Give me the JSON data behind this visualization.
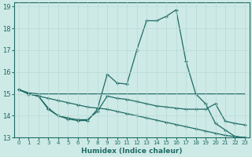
{
  "xlabel": "Humidex (Indice chaleur)",
  "bg_color": "#ceeae6",
  "line_color": "#1e6b65",
  "grid_color": "#b8d8d4",
  "xlim": [
    -0.5,
    23.5
  ],
  "ylim": [
    13,
    19.2
  ],
  "yticks": [
    13,
    14,
    15,
    16,
    17,
    18,
    19
  ],
  "xticks": [
    0,
    1,
    2,
    3,
    4,
    5,
    6,
    7,
    8,
    9,
    10,
    11,
    12,
    13,
    14,
    15,
    16,
    17,
    18,
    19,
    20,
    21,
    22,
    23
  ],
  "line1_x": [
    0,
    1,
    2,
    3,
    4,
    5,
    6,
    7,
    8,
    9,
    10,
    11,
    12,
    13,
    14,
    15,
    16,
    17,
    18,
    19,
    20,
    21,
    22,
    23
  ],
  "line1_y": [
    15.2,
    15.0,
    14.9,
    14.3,
    14.0,
    13.85,
    13.78,
    13.78,
    14.3,
    15.9,
    15.5,
    15.45,
    17.0,
    18.35,
    18.35,
    18.55,
    18.85,
    16.5,
    15.0,
    14.55,
    13.65,
    13.35,
    13.05,
    13.0
  ],
  "line2_x": [
    0,
    1,
    2,
    3,
    4,
    5,
    6,
    7,
    8,
    9,
    10,
    11,
    12,
    13,
    14,
    15,
    16,
    17,
    18,
    19,
    20,
    21,
    22,
    23
  ],
  "line2_y": [
    15.2,
    15.05,
    15.0,
    15.0,
    15.0,
    15.0,
    15.0,
    15.0,
    15.0,
    15.0,
    15.0,
    15.0,
    15.0,
    15.0,
    15.0,
    15.0,
    15.0,
    15.0,
    15.0,
    15.0,
    15.0,
    15.0,
    15.0,
    15.0
  ],
  "line3_x": [
    0,
    1,
    2,
    3,
    4,
    5,
    6,
    7,
    8,
    9,
    10,
    11,
    12,
    13,
    14,
    15,
    16,
    17,
    18,
    19,
    20,
    21,
    22,
    23
  ],
  "line3_y": [
    15.2,
    15.0,
    14.9,
    14.35,
    14.0,
    13.9,
    13.82,
    13.82,
    14.2,
    14.9,
    14.8,
    14.75,
    14.65,
    14.55,
    14.45,
    14.4,
    14.35,
    14.3,
    14.3,
    14.3,
    14.55,
    13.75,
    13.65,
    13.58
  ],
  "line4_x": [
    0,
    1,
    2,
    3,
    4,
    5,
    6,
    7,
    8,
    9,
    10,
    11,
    12,
    13,
    14,
    15,
    16,
    17,
    18,
    19,
    20,
    21,
    22,
    23
  ],
  "line4_y": [
    15.2,
    15.0,
    14.9,
    14.8,
    14.7,
    14.6,
    14.5,
    14.4,
    14.35,
    14.3,
    14.2,
    14.1,
    14.0,
    13.9,
    13.8,
    13.7,
    13.6,
    13.5,
    13.4,
    13.3,
    13.2,
    13.1,
    13.05,
    13.0
  ]
}
